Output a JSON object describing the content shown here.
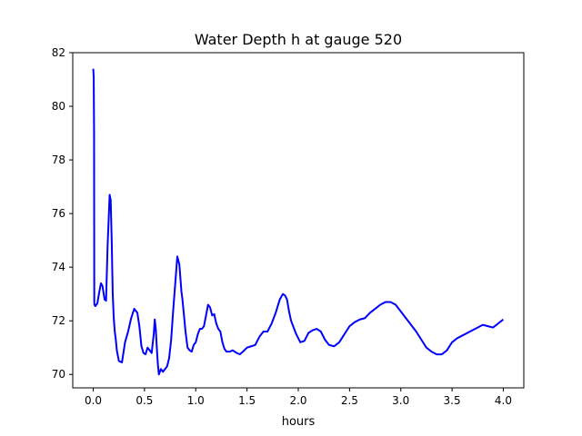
{
  "chart_data": {
    "type": "line",
    "title": "Water Depth h at gauge 520",
    "xlabel": "hours",
    "ylabel": "",
    "xlim": [
      -0.2,
      4.2
    ],
    "ylim": [
      69.5,
      82.0
    ],
    "xticks": [
      0.0,
      0.5,
      1.0,
      1.5,
      2.0,
      2.5,
      3.0,
      3.5,
      4.0
    ],
    "xtick_labels": [
      "0.0",
      "0.5",
      "1.0",
      "1.5",
      "2.0",
      "2.5",
      "3.0",
      "3.5",
      "4.0"
    ],
    "yticks": [
      70,
      72,
      74,
      76,
      78,
      80,
      82
    ],
    "ytick_labels": [
      "70",
      "72",
      "74",
      "76",
      "78",
      "80",
      "82"
    ],
    "grid": false,
    "legend": "none",
    "series": [
      {
        "color": "#0000ff",
        "x": [
          0.0,
          0.0045,
          0.008,
          0.01,
          0.012,
          0.02,
          0.04,
          0.06,
          0.075,
          0.09,
          0.11,
          0.125,
          0.14,
          0.16,
          0.17,
          0.18,
          0.19,
          0.2,
          0.21,
          0.22,
          0.23,
          0.25,
          0.28,
          0.31,
          0.34,
          0.37,
          0.4,
          0.43,
          0.45,
          0.47,
          0.49,
          0.51,
          0.53,
          0.55,
          0.57,
          0.59,
          0.6,
          0.61,
          0.62,
          0.63,
          0.64,
          0.66,
          0.68,
          0.7,
          0.72,
          0.74,
          0.76,
          0.78,
          0.8,
          0.82,
          0.84,
          0.85,
          0.86,
          0.87,
          0.88,
          0.9,
          0.92,
          0.94,
          0.96,
          0.98,
          1.0,
          1.02,
          1.04,
          1.06,
          1.08,
          1.1,
          1.12,
          1.14,
          1.16,
          1.18,
          1.2,
          1.22,
          1.24,
          1.26,
          1.28,
          1.3,
          1.33,
          1.36,
          1.4,
          1.43,
          1.46,
          1.5,
          1.54,
          1.58,
          1.62,
          1.66,
          1.7,
          1.74,
          1.78,
          1.82,
          1.85,
          1.87,
          1.89,
          1.91,
          1.93,
          1.95,
          1.98,
          2.02,
          2.06,
          2.1,
          2.14,
          2.18,
          2.22,
          2.26,
          2.3,
          2.35,
          2.4,
          2.45,
          2.5,
          2.55,
          2.6,
          2.65,
          2.7,
          2.75,
          2.8,
          2.85,
          2.9,
          2.95,
          3.0,
          3.05,
          3.1,
          3.15,
          3.2,
          3.25,
          3.3,
          3.35,
          3.4,
          3.45,
          3.5,
          3.55,
          3.6,
          3.65,
          3.7,
          3.75,
          3.8,
          3.85,
          3.9,
          3.95,
          4.0
        ],
        "y": [
          81.4,
          81.1,
          79.0,
          72.7,
          72.6,
          72.55,
          72.65,
          73.1,
          73.4,
          73.3,
          72.8,
          72.75,
          74.8,
          76.7,
          76.5,
          75.0,
          73.0,
          72.1,
          71.6,
          71.3,
          70.9,
          70.5,
          70.45,
          71.2,
          71.6,
          72.1,
          72.45,
          72.3,
          71.8,
          71.05,
          70.8,
          70.75,
          71.0,
          70.9,
          70.8,
          71.5,
          72.05,
          71.7,
          71.0,
          70.4,
          70.0,
          70.2,
          70.1,
          70.2,
          70.3,
          70.6,
          71.3,
          72.4,
          73.4,
          74.4,
          74.1,
          73.6,
          73.1,
          72.8,
          72.4,
          71.6,
          71.0,
          70.9,
          70.85,
          71.1,
          71.2,
          71.5,
          71.7,
          71.7,
          71.8,
          72.2,
          72.6,
          72.5,
          72.2,
          72.25,
          71.9,
          71.7,
          71.6,
          71.2,
          70.95,
          70.85,
          70.85,
          70.9,
          70.8,
          70.75,
          70.85,
          71.0,
          71.05,
          71.1,
          71.4,
          71.6,
          71.6,
          71.9,
          72.3,
          72.8,
          73.0,
          72.95,
          72.8,
          72.35,
          72.0,
          71.8,
          71.5,
          71.2,
          71.25,
          71.55,
          71.65,
          71.7,
          71.6,
          71.3,
          71.1,
          71.05,
          71.2,
          71.5,
          71.8,
          71.95,
          72.05,
          72.1,
          72.3,
          72.45,
          72.6,
          72.7,
          72.7,
          72.6,
          72.35,
          72.1,
          71.85,
          71.6,
          71.3,
          71.0,
          70.85,
          70.75,
          70.75,
          70.9,
          71.2,
          71.35,
          71.45,
          71.55,
          71.65,
          71.75,
          71.85,
          71.8,
          71.75,
          71.9,
          72.05
        ]
      }
    ]
  }
}
